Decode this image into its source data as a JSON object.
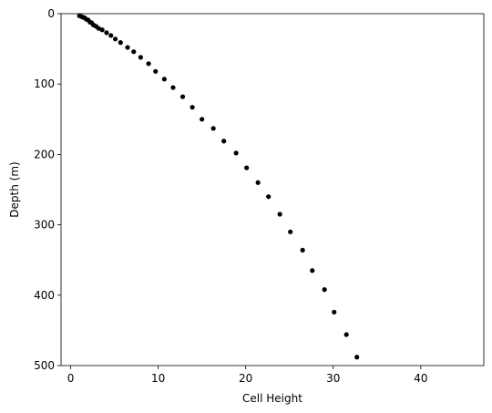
{
  "chart_data": {
    "type": "scatter",
    "xlabel": "Cell Height",
    "ylabel": "Depth (m)",
    "x": [
      1.0,
      1.2,
      1.4,
      1.6,
      1.8,
      2.0,
      2.2,
      2.4,
      2.6,
      2.9,
      3.2,
      3.6,
      4.1,
      4.6,
      5.1,
      5.7,
      6.5,
      7.2,
      8.0,
      8.9,
      9.7,
      10.7,
      11.7,
      12.8,
      13.9,
      15.0,
      16.3,
      17.5,
      18.9,
      20.1,
      21.4,
      22.6,
      23.9,
      25.1,
      26.5,
      27.6,
      29.0,
      30.1,
      31.5,
      32.7
    ],
    "values": [
      3,
      4,
      5,
      6,
      8,
      9,
      12,
      13,
      16,
      18,
      21,
      23,
      27,
      31,
      36,
      41,
      48,
      54,
      62,
      71,
      82,
      93,
      105,
      118,
      133,
      150,
      163,
      181,
      198,
      219,
      240,
      260,
      285,
      310,
      336,
      365,
      392,
      424,
      456,
      488
    ],
    "color": "#000000",
    "xlim": [
      -1.1,
      47.2
    ],
    "ylim": [
      500,
      0
    ],
    "xticks": [
      0,
      10,
      20,
      30,
      40
    ],
    "yticks": [
      0,
      100,
      200,
      300,
      400,
      500
    ],
    "inverted_y": true
  }
}
